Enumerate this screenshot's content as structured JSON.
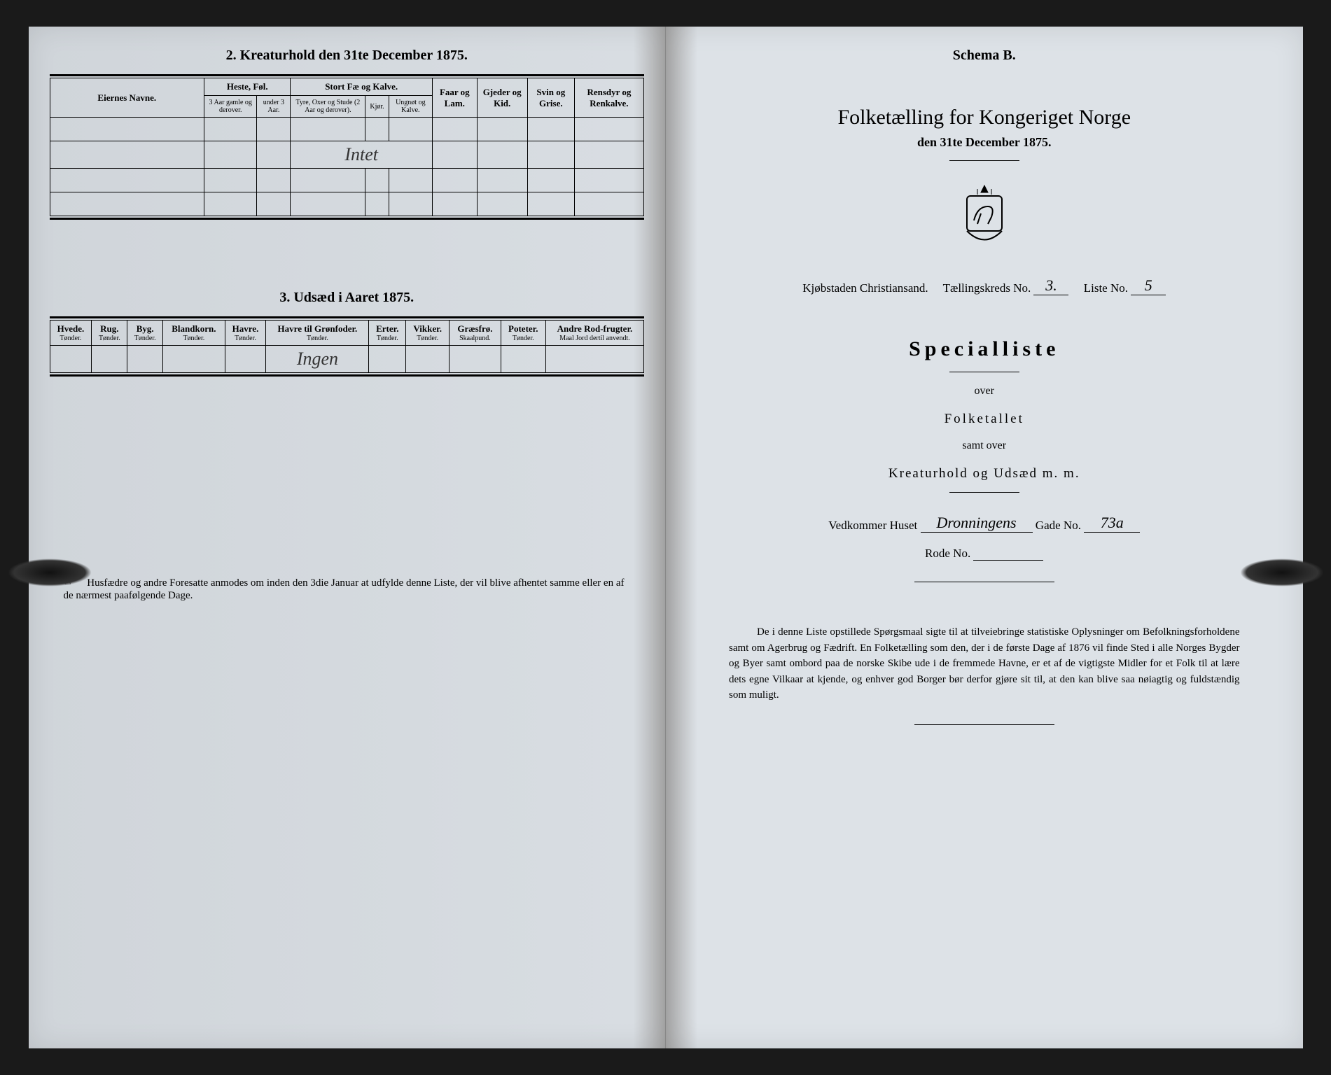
{
  "left": {
    "section2": {
      "title": "2. Kreaturhold den 31te December 1875.",
      "groups": [
        {
          "label": "Eiernes Navne.",
          "cols": []
        },
        {
          "label": "Heste, Føl.",
          "cols": [
            "3 Aar gamle og derover.",
            "under 3 Aar."
          ]
        },
        {
          "label": "Stort Fæ og Kalve.",
          "cols": [
            "Tyre, Oxer og Stude (2 Aar og derover).",
            "Kjør.",
            "Ungnøt og Kalve."
          ]
        },
        {
          "label": "Faar og Lam.",
          "cols": []
        },
        {
          "label": "Gjeder og Kid.",
          "cols": []
        },
        {
          "label": "Svin og Grise.",
          "cols": []
        },
        {
          "label": "Rensdyr og Renkalve.",
          "cols": []
        }
      ],
      "handwritten": "Intet"
    },
    "section3": {
      "title": "3. Udsæd i Aaret 1875.",
      "cols": [
        {
          "h": "Hvede.",
          "s": "Tønder."
        },
        {
          "h": "Rug.",
          "s": "Tønder."
        },
        {
          "h": "Byg.",
          "s": "Tønder."
        },
        {
          "h": "Blandkorn.",
          "s": "Tønder."
        },
        {
          "h": "Havre.",
          "s": "Tønder."
        },
        {
          "h": "Havre til Grønfoder.",
          "s": "Tønder."
        },
        {
          "h": "Erter.",
          "s": "Tønder."
        },
        {
          "h": "Vikker.",
          "s": "Tønder."
        },
        {
          "h": "Græsfrø.",
          "s": "Skaalpund."
        },
        {
          "h": "Poteter.",
          "s": "Tønder."
        },
        {
          "h": "Andre Rod-frugter.",
          "s": "Maal Jord dertil anvendt."
        }
      ],
      "handwritten": "Ingen"
    },
    "footer": "Husfædre og andre Foresatte anmodes om inden den 3die Januar at udfylde denne Liste, der vil blive afhentet samme eller en af de nærmest paafølgende Dage."
  },
  "right": {
    "schema": "Schema B.",
    "title": "Folketælling for Kongeriget Norge",
    "date": "den 31te December 1875.",
    "location_line": {
      "pre": "Kjøbstaden Christiansand.",
      "mid": "Tællingskreds No.",
      "kreds": "3.",
      "post": "Liste No.",
      "liste": "5"
    },
    "special": "Specialliste",
    "over1": "over",
    "folketallet": "Folketallet",
    "samt": "samt over",
    "kreatur": "Kreaturhold og Udsæd m. m.",
    "address": {
      "pre": "Vedkommer Huset",
      "street": "Dronningens",
      "gade": "Gade No.",
      "no": "73a"
    },
    "rode": "Rode No.",
    "paragraph": "De i denne Liste opstillede Spørgsmaal sigte til at tilveiebringe statistiske Oplysninger om Befolkningsforholdene samt om Agerbrug og Fædrift. En Folketælling som den, der i de første Dage af 1876 vil finde Sted i alle Norges Bygder og Byer samt ombord paa de norske Skibe ude i de fremmede Havne, er et af de vigtigste Midler for et Folk til at lære dets egne Vilkaar at kjende, og enhver god Borger bør derfor gjøre sit til, at den kan blive saa nøiagtig og fuldstændig som muligt."
  }
}
